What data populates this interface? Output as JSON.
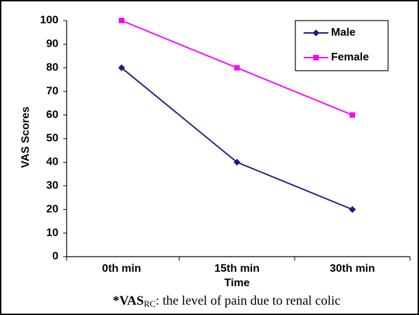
{
  "chart_data": {
    "type": "line",
    "categories": [
      "0th min",
      "15th min",
      "30th min"
    ],
    "series": [
      {
        "name": "Male",
        "color": "#1f1f7a",
        "marker": "diamond",
        "values": [
          80,
          40,
          20
        ]
      },
      {
        "name": "Female",
        "color": "#ff00ff",
        "marker": "square",
        "values": [
          100,
          80,
          60
        ]
      }
    ],
    "ylim": [
      0,
      100
    ],
    "yticks": [
      0,
      10,
      20,
      30,
      40,
      50,
      60,
      70,
      80,
      90,
      100
    ],
    "xlabel": "Time",
    "ylabel": "VAS Scores",
    "legend": "top-right",
    "grid": false,
    "footnote": {
      "prefix": "*VAS",
      "subscript": "RC",
      "text": ": the level of pain due to renal colic"
    }
  }
}
